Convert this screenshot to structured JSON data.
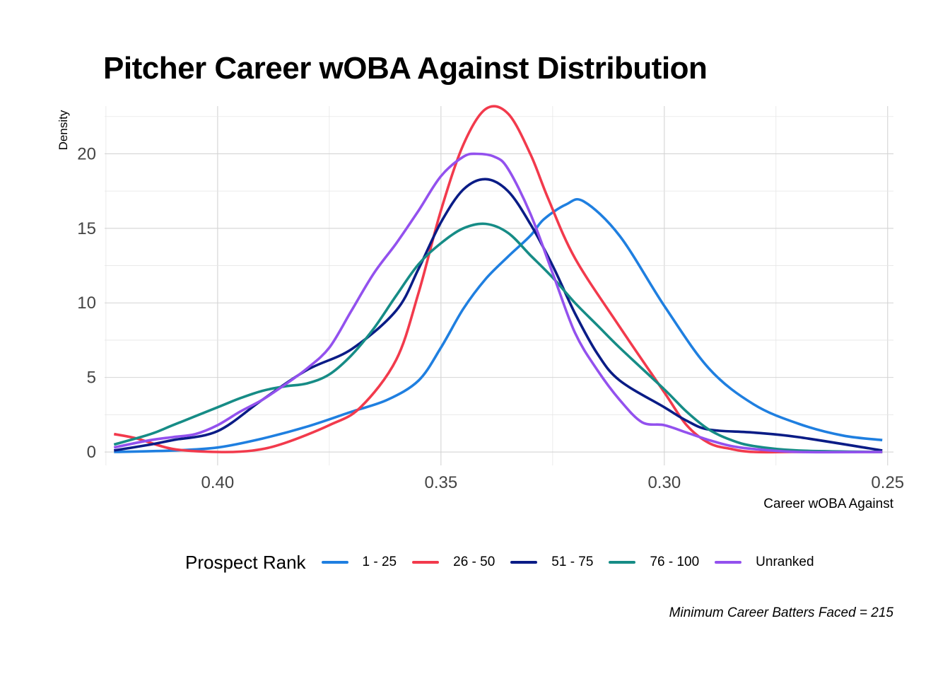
{
  "chart_data": {
    "type": "line",
    "title": "Pitcher Career wOBA Against Distribution",
    "xlabel": "Career wOBA Against",
    "ylabel": "Density",
    "caption": "Minimum Career Batters Faced = 215",
    "x_reversed": true,
    "xlim": [
      0.4253,
      0.2487
    ],
    "ylim": [
      -0.9,
      23.2
    ],
    "x_ticks": [
      0.4,
      0.35,
      0.3,
      0.25
    ],
    "x_tick_labels": [
      "0.40",
      "0.35",
      "0.30",
      "0.25"
    ],
    "y_ticks": [
      0,
      5,
      10,
      15,
      20
    ],
    "y_tick_labels": [
      "0",
      "5",
      "10",
      "15",
      "20"
    ],
    "grid": true,
    "legend": {
      "title": "Prospect Rank",
      "position": "bottom",
      "entries": [
        "1 - 25",
        "26 - 50",
        "51 - 75",
        "76 - 100",
        "Unranked"
      ]
    },
    "series": [
      {
        "name": "1 - 25",
        "color": "#1f7fe0",
        "x": [
          0.4232,
          0.41,
          0.4,
          0.39,
          0.38,
          0.37,
          0.362,
          0.355,
          0.35,
          0.345,
          0.34,
          0.335,
          0.33,
          0.327,
          0.322,
          0.318,
          0.31,
          0.3,
          0.29,
          0.28,
          0.27,
          0.26,
          0.2512
        ],
        "y": [
          0.0,
          0.1,
          0.3,
          0.9,
          1.7,
          2.7,
          3.5,
          4.8,
          7.0,
          9.6,
          11.6,
          13.1,
          14.5,
          15.6,
          16.6,
          16.8,
          14.5,
          9.8,
          5.6,
          3.2,
          1.9,
          1.1,
          0.8
        ]
      },
      {
        "name": "26 - 50",
        "color": "#f23a4c",
        "x": [
          0.4232,
          0.418,
          0.41,
          0.4,
          0.392,
          0.385,
          0.375,
          0.368,
          0.36,
          0.355,
          0.35,
          0.345,
          0.34,
          0.335,
          0.33,
          0.326,
          0.32,
          0.31,
          0.3,
          0.295,
          0.29,
          0.285,
          0.28,
          0.27,
          0.2512
        ],
        "y": [
          1.2,
          0.9,
          0.2,
          0.0,
          0.1,
          0.6,
          1.8,
          3.0,
          6.2,
          10.7,
          16.2,
          20.6,
          23.0,
          22.7,
          20.0,
          17.0,
          13.0,
          8.4,
          4.0,
          1.8,
          0.6,
          0.2,
          0.0,
          0.0,
          0.0
        ]
      },
      {
        "name": "51 - 75",
        "color": "#0a1c86",
        "x": [
          0.4232,
          0.415,
          0.41,
          0.4,
          0.39,
          0.38,
          0.37,
          0.36,
          0.355,
          0.35,
          0.345,
          0.34,
          0.335,
          0.33,
          0.325,
          0.32,
          0.315,
          0.31,
          0.3,
          0.295,
          0.29,
          0.28,
          0.27,
          0.2512
        ],
        "y": [
          0.1,
          0.5,
          0.8,
          1.4,
          3.5,
          5.5,
          6.9,
          9.5,
          12.3,
          15.4,
          17.6,
          18.3,
          17.5,
          15.3,
          12.5,
          9.3,
          6.6,
          4.8,
          3.0,
          2.1,
          1.5,
          1.3,
          1.0,
          0.1
        ]
      },
      {
        "name": "76 - 100",
        "color": "#168c86",
        "x": [
          0.4232,
          0.415,
          0.41,
          0.4,
          0.395,
          0.39,
          0.385,
          0.38,
          0.375,
          0.37,
          0.365,
          0.36,
          0.355,
          0.35,
          0.345,
          0.34,
          0.335,
          0.33,
          0.325,
          0.32,
          0.315,
          0.31,
          0.3,
          0.295,
          0.29,
          0.285,
          0.28,
          0.27,
          0.2512
        ],
        "y": [
          0.5,
          1.2,
          1.8,
          3.0,
          3.6,
          4.1,
          4.4,
          4.6,
          5.2,
          6.5,
          8.3,
          10.5,
          12.6,
          14.0,
          15.0,
          15.3,
          14.7,
          13.2,
          11.7,
          10.0,
          8.5,
          7.0,
          4.2,
          2.7,
          1.5,
          0.8,
          0.4,
          0.1,
          0.0
        ]
      },
      {
        "name": "Unranked",
        "color": "#9351ee",
        "x": [
          0.4232,
          0.415,
          0.41,
          0.405,
          0.4,
          0.395,
          0.39,
          0.385,
          0.38,
          0.375,
          0.37,
          0.365,
          0.36,
          0.355,
          0.35,
          0.345,
          0.342,
          0.338,
          0.335,
          0.33,
          0.325,
          0.32,
          0.315,
          0.31,
          0.305,
          0.3,
          0.295,
          0.29,
          0.285,
          0.28,
          0.27,
          0.2512
        ],
        "y": [
          0.3,
          0.8,
          1.0,
          1.2,
          1.8,
          2.7,
          3.5,
          4.5,
          5.6,
          7.0,
          9.5,
          12.0,
          14.0,
          16.2,
          18.5,
          19.8,
          20.0,
          19.8,
          19.0,
          16.0,
          12.0,
          8.0,
          5.5,
          3.5,
          2.0,
          1.8,
          1.3,
          0.8,
          0.4,
          0.2,
          0.0,
          0.0
        ]
      }
    ]
  }
}
